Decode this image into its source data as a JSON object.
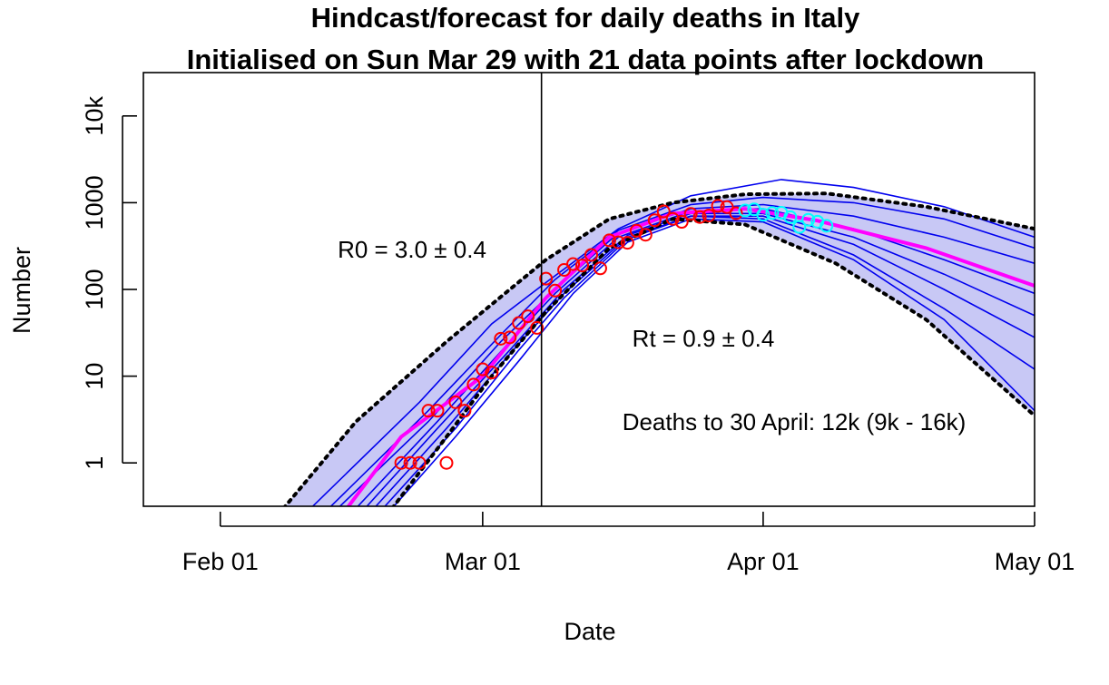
{
  "chart_data": {
    "type": "line",
    "title": "Hindcast/forecast for daily deaths in Italy",
    "subtitle": "Initialised on Sun Mar 29 with 21 data points after lockdown",
    "xlabel": "Date",
    "ylabel": "Number",
    "y_scale": "log10",
    "xlim_day": [
      -8.5,
      90
    ],
    "ylim_log10": [
      -0.5,
      4.5
    ],
    "x_ticks": [
      {
        "day": 0,
        "label": "Feb 01"
      },
      {
        "day": 29,
        "label": "Mar 01"
      },
      {
        "day": 60,
        "label": "Apr 01"
      },
      {
        "day": 90,
        "label": "May 01"
      }
    ],
    "y_ticks": [
      {
        "value": 1,
        "label": "1"
      },
      {
        "value": 10,
        "label": "10"
      },
      {
        "value": 100,
        "label": "100"
      },
      {
        "value": 1000,
        "label": "1000"
      },
      {
        "value": 10000,
        "label": "10k"
      }
    ],
    "lockdown_day": 35.5,
    "annotations": {
      "r0": "R0 = 3.0 ± 0.4",
      "rt": "Rt = 0.9 ± 0.4",
      "deaths": "Deaths to 30 April: 12k (9k - 16k)"
    },
    "colors": {
      "band_fill": "#c8c8f5",
      "ensemble": "#0000ee",
      "median": "#ff00ff",
      "bounds": "#000000",
      "observed": "#ff0000",
      "verification": "#00ffff",
      "lockdown_line": "#000000"
    },
    "series": [
      {
        "name": "Observed daily deaths (training)",
        "style": "circles-red",
        "points": [
          [
            20,
            1
          ],
          [
            21,
            1
          ],
          [
            22,
            1
          ],
          [
            23,
            4
          ],
          [
            24,
            4
          ],
          [
            25,
            1
          ],
          [
            26,
            5
          ],
          [
            27,
            4
          ],
          [
            28,
            8
          ],
          [
            29,
            12
          ],
          [
            30,
            11
          ],
          [
            31,
            27
          ],
          [
            32,
            28
          ],
          [
            33,
            41
          ],
          [
            34,
            49
          ],
          [
            35,
            36
          ],
          [
            36,
            133
          ],
          [
            37,
            97
          ],
          [
            38,
            168
          ],
          [
            39,
            196
          ],
          [
            40,
            189
          ],
          [
            41,
            250
          ],
          [
            42,
            175
          ],
          [
            43,
            368
          ],
          [
            44,
            349
          ],
          [
            45,
            345
          ],
          [
            46,
            475
          ],
          [
            47,
            427
          ],
          [
            48,
            627
          ],
          [
            49,
            793
          ],
          [
            50,
            651
          ],
          [
            51,
            601
          ],
          [
            52,
            743
          ],
          [
            53,
            683
          ],
          [
            54,
            712
          ],
          [
            55,
            919
          ],
          [
            56,
            889
          ],
          [
            57,
            756
          ]
        ]
      },
      {
        "name": "Observed daily deaths (verification)",
        "style": "circles-cyan",
        "points": [
          [
            58,
            812
          ],
          [
            59,
            837
          ],
          [
            60,
            727
          ],
          [
            61,
            760
          ],
          [
            62,
            766
          ],
          [
            63,
            681
          ],
          [
            64,
            525
          ],
          [
            65,
            636
          ],
          [
            66,
            604
          ],
          [
            67,
            542
          ]
        ]
      },
      {
        "name": "Upper bound",
        "style": "dotted-black",
        "points": [
          [
            7,
            0.3
          ],
          [
            15,
            3
          ],
          [
            25,
            25
          ],
          [
            32,
            100
          ],
          [
            36,
            220
          ],
          [
            43,
            650
          ],
          [
            50,
            1000
          ],
          [
            58,
            1250
          ],
          [
            67,
            1280
          ],
          [
            78,
            900
          ],
          [
            90,
            500
          ]
        ]
      },
      {
        "name": "Lower bound",
        "style": "dotted-black",
        "points": [
          [
            19,
            0.3
          ],
          [
            25,
            2
          ],
          [
            30,
            10
          ],
          [
            36,
            55
          ],
          [
            43,
            300
          ],
          [
            50,
            650
          ],
          [
            58,
            560
          ],
          [
            68,
            200
          ],
          [
            78,
            45
          ],
          [
            90,
            3.5
          ]
        ]
      },
      {
        "name": "Median",
        "style": "magenta-thick",
        "points": [
          [
            14,
            0.3
          ],
          [
            20,
            2
          ],
          [
            29,
            10
          ],
          [
            36,
            80
          ],
          [
            43,
            400
          ],
          [
            50,
            750
          ],
          [
            58,
            850
          ],
          [
            66,
            620
          ],
          [
            78,
            300
          ],
          [
            90,
            110
          ]
        ]
      },
      {
        "name": "Ensemble member 1",
        "style": "blue-thin",
        "points": [
          [
            10,
            0.3
          ],
          [
            22,
            5
          ],
          [
            30,
            40
          ],
          [
            36,
            120
          ],
          [
            44,
            500
          ],
          [
            52,
            1200
          ],
          [
            62,
            1850
          ],
          [
            70,
            1500
          ],
          [
            80,
            900
          ],
          [
            90,
            400
          ]
        ]
      },
      {
        "name": "Ensemble member 2",
        "style": "blue-thin",
        "points": [
          [
            12,
            0.3
          ],
          [
            23,
            4
          ],
          [
            31,
            30
          ],
          [
            37,
            130
          ],
          [
            44,
            480
          ],
          [
            52,
            950
          ],
          [
            60,
            1150
          ],
          [
            70,
            1000
          ],
          [
            80,
            650
          ],
          [
            90,
            300
          ]
        ]
      },
      {
        "name": "Ensemble member 3",
        "style": "blue-thin",
        "points": [
          [
            13,
            0.3
          ],
          [
            23,
            3
          ],
          [
            31,
            25
          ],
          [
            37,
            100
          ],
          [
            44,
            450
          ],
          [
            52,
            850
          ],
          [
            60,
            950
          ],
          [
            70,
            700
          ],
          [
            80,
            400
          ],
          [
            90,
            200
          ]
        ]
      },
      {
        "name": "Ensemble member 4",
        "style": "blue-thin",
        "points": [
          [
            15,
            0.3
          ],
          [
            24,
            3
          ],
          [
            32,
            25
          ],
          [
            37,
            90
          ],
          [
            44,
            400
          ],
          [
            52,
            800
          ],
          [
            60,
            850
          ],
          [
            70,
            500
          ],
          [
            80,
            220
          ],
          [
            90,
            90
          ]
        ]
      },
      {
        "name": "Ensemble member 5",
        "style": "blue-thin",
        "points": [
          [
            16,
            0.3
          ],
          [
            24,
            2.5
          ],
          [
            32,
            20
          ],
          [
            38,
            100
          ],
          [
            45,
            420
          ],
          [
            52,
            750
          ],
          [
            60,
            750
          ],
          [
            70,
            400
          ],
          [
            80,
            150
          ],
          [
            90,
            50
          ]
        ]
      },
      {
        "name": "Ensemble member 6",
        "style": "blue-thin",
        "points": [
          [
            17,
            0.3
          ],
          [
            25,
            2.5
          ],
          [
            32,
            18
          ],
          [
            38,
            90
          ],
          [
            45,
            400
          ],
          [
            52,
            700
          ],
          [
            60,
            700
          ],
          [
            70,
            330
          ],
          [
            80,
            100
          ],
          [
            90,
            28
          ]
        ]
      },
      {
        "name": "Ensemble member 7",
        "style": "blue-thin",
        "points": [
          [
            18,
            0.3
          ],
          [
            26,
            2.5
          ],
          [
            33,
            20
          ],
          [
            38,
            80
          ],
          [
            45,
            380
          ],
          [
            52,
            700
          ],
          [
            60,
            650
          ],
          [
            70,
            250
          ],
          [
            80,
            60
          ],
          [
            90,
            12
          ]
        ]
      },
      {
        "name": "Ensemble member 8",
        "style": "blue-thin",
        "points": [
          [
            19,
            0.3
          ],
          [
            26,
            2
          ],
          [
            33,
            15
          ],
          [
            39,
            90
          ],
          [
            45,
            350
          ],
          [
            52,
            650
          ],
          [
            60,
            600
          ],
          [
            70,
            220
          ],
          [
            80,
            45
          ],
          [
            90,
            4
          ]
        ]
      }
    ]
  }
}
